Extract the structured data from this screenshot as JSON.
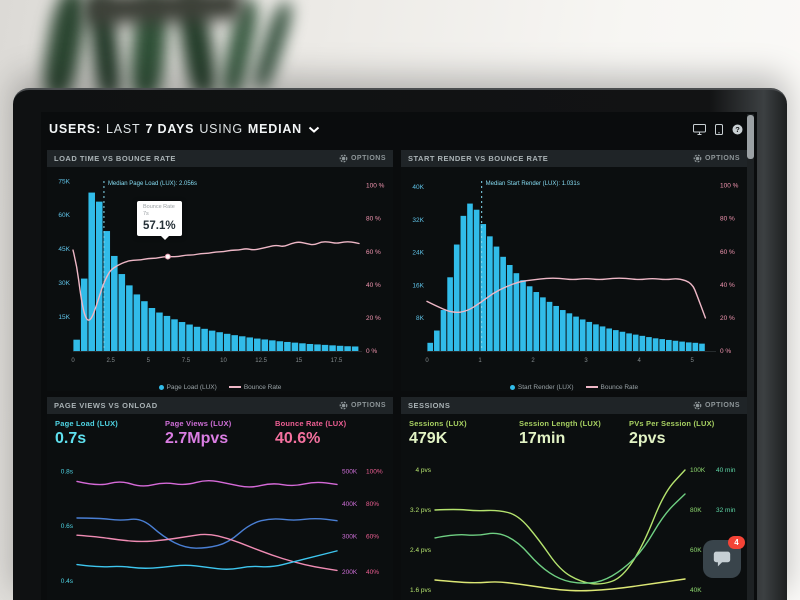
{
  "header": {
    "parts": [
      {
        "t": "USERS:"
      },
      {
        "t": "LAST"
      },
      {
        "t": "7 DAYS"
      },
      {
        "t": "USING"
      },
      {
        "t": "MEDIAN"
      }
    ],
    "icons": [
      "desktop-icon",
      "mobile-icon",
      "help-icon"
    ]
  },
  "chat": {
    "badge": "4"
  },
  "panels": [
    {
      "title": "LOAD TIME VS BOUNCE RATE",
      "options_label": "OPTIONS",
      "legend": [
        {
          "label": "Page Load (LUX)",
          "color": "#31bce9",
          "type": "dot"
        },
        {
          "label": "Bounce Rate",
          "color": "#eeb7c6",
          "type": "line"
        }
      ],
      "tooltip": {
        "line1": "Bounce Rate",
        "line2": "7s",
        "value": "57.1%"
      }
    },
    {
      "title": "START RENDER VS BOUNCE RATE",
      "options_label": "OPTIONS",
      "legend": [
        {
          "label": "Start Render (LUX)",
          "color": "#31bce9",
          "type": "dot"
        },
        {
          "label": "Bounce Rate",
          "color": "#eeb7c6",
          "type": "line"
        }
      ]
    },
    {
      "title": "PAGE VIEWS VS ONLOAD",
      "options_label": "OPTIONS",
      "metrics": [
        {
          "label": "Page Load (LUX)",
          "value": "0.7s",
          "color": "#4fd4e4",
          "value_color": "#5fe0ee"
        },
        {
          "label": "Page Views (LUX)",
          "value": "2.7Mpvs",
          "color": "#cf6fd8",
          "value_color": "#da7de2"
        },
        {
          "label": "Bounce Rate (LUX)",
          "value": "40.6%",
          "color": "#ef5f94",
          "value_color": "#f4719f"
        }
      ]
    },
    {
      "title": "SESSIONS",
      "options_label": "OPTIONS",
      "metrics": [
        {
          "label": "Sessions (LUX)",
          "value": "479K",
          "color": "#a8d162",
          "value_color": "#e2f3c4"
        },
        {
          "label": "Session Length (LUX)",
          "value": "17min",
          "color": "#a8d162",
          "value_color": "#e2f3c4"
        },
        {
          "label": "PVs Per Session (LUX)",
          "value": "2pvs",
          "color": "#a8d162",
          "value_color": "#e2f3c4"
        }
      ]
    }
  ],
  "chart_data": [
    {
      "id": "load-time-vs-bounce-rate",
      "type": "bar+line",
      "title": "LOAD TIME VS BOUNCE RATE",
      "x_unit": "seconds",
      "xlim": [
        0,
        19.2
      ],
      "margins": {
        "l": 26,
        "r": 31,
        "t": 12,
        "b": 24
      },
      "x_ticks": [
        {
          "label": "0",
          "v": 0
        },
        {
          "label": "2.5",
          "v": 2.5
        },
        {
          "label": "5",
          "v": 5
        },
        {
          "label": "7.5",
          "v": 7.5
        },
        {
          "label": "10",
          "v": 10
        },
        {
          "label": "12.5",
          "v": 12.5
        },
        {
          "label": "15",
          "v": 15
        },
        {
          "label": "17.5",
          "v": 17.5
        }
      ],
      "left_axis": {
        "ylim": [
          0,
          76
        ],
        "color": "#5fc3e8",
        "ticks": [
          {
            "label": "75K",
            "v": 75
          },
          {
            "label": "60K",
            "v": 60
          },
          {
            "label": "45K",
            "v": 45
          },
          {
            "label": "30K",
            "v": 30
          },
          {
            "label": "15K",
            "v": 15
          }
        ]
      },
      "right_axis": {
        "ylim": [
          0,
          104
        ],
        "color": "#f295b0",
        "ticks": [
          {
            "label": "100 %",
            "v": 100
          },
          {
            "label": "80 %",
            "v": 80
          },
          {
            "label": "60 %",
            "v": 60
          },
          {
            "label": "40 %",
            "v": 40
          },
          {
            "label": "20 %",
            "v": 20
          },
          {
            "label": "0 %",
            "v": 0
          }
        ]
      },
      "bars": {
        "name": "Page Load (LUX)",
        "color": "#31bce9",
        "x0": 0,
        "dx": 0.5,
        "unit": "K",
        "values": [
          5,
          32,
          70,
          66,
          53,
          42,
          34,
          29,
          25,
          22,
          19,
          17,
          15.5,
          14,
          12.8,
          11.7,
          10.7,
          9.8,
          9,
          8.3,
          7.6,
          7,
          6.5,
          6,
          5.5,
          5.1,
          4.7,
          4.3,
          4,
          3.7,
          3.4,
          3.1,
          2.9,
          2.7,
          2.5,
          2.3,
          2.1,
          2
        ]
      },
      "line": {
        "name": "Bounce Rate",
        "color": "#eeb7c6",
        "unit": "%",
        "points": [
          [
            0,
            61
          ],
          [
            0.25,
            52
          ],
          [
            0.5,
            34
          ],
          [
            0.75,
            22
          ],
          [
            1,
            18
          ],
          [
            1.25,
            20
          ],
          [
            1.5,
            26
          ],
          [
            1.75,
            33
          ],
          [
            2,
            40
          ],
          [
            2.25,
            45
          ],
          [
            2.5,
            49
          ],
          [
            3,
            52
          ],
          [
            3.5,
            54
          ],
          [
            4,
            55
          ],
          [
            4.5,
            55
          ],
          [
            5,
            56
          ],
          [
            5.5,
            56
          ],
          [
            6,
            57
          ],
          [
            6.5,
            57
          ],
          [
            7,
            57.1
          ],
          [
            7.5,
            58
          ],
          [
            8,
            58
          ],
          [
            8.5,
            59
          ],
          [
            9,
            59
          ],
          [
            9.5,
            60
          ],
          [
            10,
            60
          ],
          [
            10.5,
            61
          ],
          [
            11,
            61
          ],
          [
            11.5,
            62
          ],
          [
            12,
            61
          ],
          [
            12.5,
            62
          ],
          [
            13,
            63
          ],
          [
            13.5,
            64
          ],
          [
            14,
            63
          ],
          [
            14.5,
            65
          ],
          [
            15,
            66
          ],
          [
            15.5,
            65
          ],
          [
            16,
            64
          ],
          [
            16.5,
            66
          ],
          [
            17,
            66
          ],
          [
            17.5,
            65
          ],
          [
            18,
            66
          ],
          [
            18.5,
            66
          ],
          [
            19,
            65
          ]
        ]
      },
      "median": {
        "label": "Median Page Load (LUX): 2.056s",
        "x": 2.056,
        "color": "#86dcf2"
      },
      "tooltip_point": {
        "x": 6.3,
        "v": 57.1,
        "color": "#e598ad"
      }
    },
    {
      "id": "start-render-vs-bounce-rate",
      "type": "bar+line",
      "title": "START RENDER VS BOUNCE RATE",
      "x_unit": "seconds",
      "xlim": [
        0,
        5.45
      ],
      "margins": {
        "l": 26,
        "r": 31,
        "t": 12,
        "b": 24
      },
      "x_ticks": [
        {
          "label": "0",
          "v": 0
        },
        {
          "label": "1",
          "v": 1
        },
        {
          "label": "2",
          "v": 2
        },
        {
          "label": "3",
          "v": 3
        },
        {
          "label": "4",
          "v": 4
        },
        {
          "label": "5",
          "v": 5
        }
      ],
      "left_axis": {
        "ylim": [
          0,
          42
        ],
        "color": "#5fc3e8",
        "ticks": [
          {
            "label": "40K",
            "v": 40
          },
          {
            "label": "32K",
            "v": 32
          },
          {
            "label": "24K",
            "v": 24
          },
          {
            "label": "16K",
            "v": 16
          },
          {
            "label": "8K",
            "v": 8
          }
        ]
      },
      "right_axis": {
        "ylim": [
          0,
          104
        ],
        "color": "#f295b0",
        "ticks": [
          {
            "label": "100 %",
            "v": 100
          },
          {
            "label": "80 %",
            "v": 80
          },
          {
            "label": "60 %",
            "v": 60
          },
          {
            "label": "40 %",
            "v": 40
          },
          {
            "label": "20 %",
            "v": 20
          },
          {
            "label": "0 %",
            "v": 0
          }
        ]
      },
      "bars": {
        "name": "Start Render (LUX)",
        "color": "#31bce9",
        "x0": 0,
        "dx": 0.125,
        "unit": "K",
        "values": [
          2,
          5,
          10,
          18,
          26,
          33,
          36,
          34.5,
          31,
          28,
          25.5,
          23,
          21,
          19,
          17.3,
          15.8,
          14.4,
          13.1,
          12,
          11,
          10,
          9.2,
          8.4,
          7.7,
          7.1,
          6.5,
          6,
          5.5,
          5.1,
          4.7,
          4.3,
          4,
          3.7,
          3.4,
          3.1,
          2.9,
          2.7,
          2.5,
          2.3,
          2.1,
          2,
          1.8
        ]
      },
      "line": {
        "name": "Bounce Rate",
        "color": "#eeb7c6",
        "unit": "%",
        "points": [
          [
            0,
            30
          ],
          [
            0.25,
            26
          ],
          [
            0.5,
            23
          ],
          [
            0.75,
            24
          ],
          [
            1,
            29
          ],
          [
            1.25,
            35
          ],
          [
            1.5,
            39
          ],
          [
            1.75,
            42
          ],
          [
            2,
            43
          ],
          [
            2.25,
            44
          ],
          [
            2.5,
            44
          ],
          [
            2.75,
            43
          ],
          [
            3,
            44
          ],
          [
            3.25,
            43
          ],
          [
            3.5,
            44
          ],
          [
            3.75,
            44
          ],
          [
            4,
            43
          ],
          [
            4.25,
            44
          ],
          [
            4.5,
            43
          ],
          [
            4.75,
            44
          ],
          [
            5,
            41
          ],
          [
            5.1,
            33
          ],
          [
            5.25,
            20
          ]
        ]
      },
      "median": {
        "label": "Median Start Render (LUX): 1.031s",
        "x": 1.031,
        "color": "#86dcf2"
      }
    },
    {
      "id": "page-views-vs-onload",
      "type": "line",
      "title": "PAGE VIEWS VS ONLOAD",
      "margins": {
        "l": 30,
        "r": 56,
        "t": 6,
        "b": 6
      },
      "right_col2_dx": 24,
      "left_color": "#4fd4e4",
      "right_a_color": "#cf6fd8",
      "right_b_color": "#ef5f94",
      "left_ticks": [
        {
          "label": "0.8s",
          "t": 0.05
        },
        {
          "label": "0.6s",
          "t": 0.42
        },
        {
          "label": "0.4s",
          "t": 0.79
        }
      ],
      "right_ticks": [
        {
          "a": "500K",
          "b": "100%",
          "t": 0.05
        },
        {
          "a": "400K",
          "b": "80%",
          "t": 0.27
        },
        {
          "a": "300K",
          "b": "60%",
          "t": 0.49
        },
        {
          "a": "200K",
          "b": "40%",
          "t": 0.73
        }
      ],
      "series": [
        {
          "name": "Page Views (LUX)",
          "color": "#d66ad8",
          "unit": "K",
          "ylim": [
            81,
            522
          ],
          "values": [
            470,
            455,
            473,
            452,
            468,
            458,
            476,
            463,
            450,
            466,
            455,
            470,
            461
          ]
        },
        {
          "name": "Onload",
          "color": "#4a7fd4",
          "unit": "s",
          "ylim": [
            0.287,
            0.827
          ],
          "values": [
            0.63,
            0.63,
            0.62,
            0.63,
            0.56,
            0.52,
            0.52,
            0.54,
            0.61,
            0.63,
            0.62,
            0.63,
            0.62
          ]
        },
        {
          "name": "Bounce Rate (LUX)",
          "color": "#f08cb4",
          "unit": "%",
          "ylim": [
            16.2,
            104.4
          ],
          "values": [
            62,
            61,
            59,
            58,
            59,
            61,
            63,
            60,
            55,
            50,
            46,
            43,
            41
          ]
        },
        {
          "name": "Page Load (LUX)",
          "color": "#3ec6ef",
          "unit": "s",
          "ylim": [
            0.287,
            0.827
          ],
          "values": [
            0.46,
            0.45,
            0.455,
            0.445,
            0.45,
            0.46,
            0.45,
            0.44,
            0.455,
            0.45,
            0.47,
            0.49,
            0.51
          ]
        }
      ]
    },
    {
      "id": "sessions",
      "type": "line",
      "title": "SESSIONS",
      "margins": {
        "l": 34,
        "r": 62,
        "t": 6,
        "b": 6
      },
      "right_col2_dx": 26,
      "left_color": "#b5e36e",
      "right_a_color": "#8fd96f",
      "right_b_color": "#5fd9a8",
      "left_ticks": [
        {
          "label": "4 pvs",
          "t": 0.04
        },
        {
          "label": "3.2 pvs",
          "t": 0.31
        },
        {
          "label": "2.4 pvs",
          "t": 0.58
        },
        {
          "label": "1.6 pvs",
          "t": 0.85
        }
      ],
      "right_ticks": [
        {
          "a": "100K",
          "b": "40 min",
          "t": 0.04
        },
        {
          "a": "80K",
          "b": "32 min",
          "t": 0.31
        },
        {
          "a": "60K",
          "b": "24 min",
          "t": 0.58
        },
        {
          "a": "40K",
          "b": "",
          "t": 0.85
        }
      ],
      "series": [
        {
          "name": "PVs Per Session (LUX)",
          "color": "#b5e36e",
          "unit": "pvs",
          "ylim": [
            1.16,
            4.12
          ],
          "values": [
            3.2,
            3.22,
            3.18,
            3.2,
            3.1,
            2.6,
            2.0,
            1.76,
            1.7,
            1.85,
            2.5,
            3.55,
            4.0
          ]
        },
        {
          "name": "Sessions (LUX)",
          "color": "#6fcf82",
          "unit": "K",
          "ylim": [
            28.9,
            103
          ],
          "values": [
            66,
            68,
            67,
            69,
            64,
            52,
            45,
            43,
            44,
            50,
            60,
            78,
            88
          ]
        },
        {
          "name": "Session Length (LUX)",
          "color": "#dce775",
          "unit": "min",
          "ylim": [
            11.6,
            41.2
          ],
          "values": [
            18,
            17.6,
            17.4,
            17.7,
            17.2,
            16.6,
            16,
            15.8,
            16,
            16.4,
            17,
            17.6,
            18.2
          ]
        }
      ]
    }
  ]
}
